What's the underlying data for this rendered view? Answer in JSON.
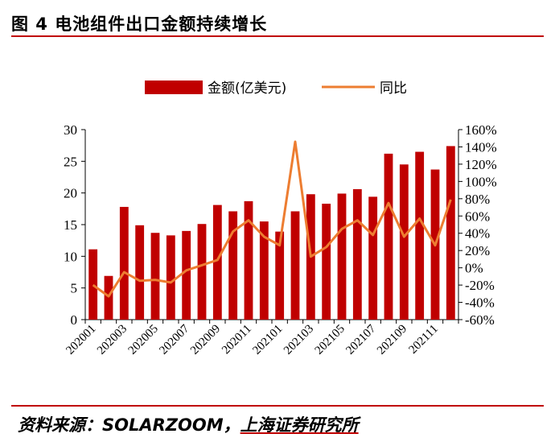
{
  "title": "图 4  电池组件出口金额持续增长",
  "source_label": "资料来源：SOLARZOOM，",
  "source_institution": "上海证券研究所",
  "colors": {
    "bar": "#c00000",
    "line": "#ed7d31",
    "rule": "#c00000"
  },
  "chart_data": {
    "type": "bar",
    "x": [
      "202001",
      "202002",
      "202003",
      "202004",
      "202005",
      "202006",
      "202007",
      "202008",
      "202009",
      "202010",
      "202011",
      "202012",
      "202101",
      "202102",
      "202103",
      "202104",
      "202105",
      "202106",
      "202107",
      "202108",
      "202109",
      "202110",
      "202111",
      "202112"
    ],
    "x_tick_labels": [
      "202001",
      "202003",
      "202005",
      "202007",
      "202009",
      "202011",
      "202101",
      "202103",
      "202105",
      "202107",
      "202109",
      "202111"
    ],
    "series": [
      {
        "name": "金额(亿美元)",
        "type": "bar",
        "axis": "left",
        "values": [
          11.1,
          6.9,
          17.8,
          14.9,
          13.7,
          13.3,
          14.0,
          15.1,
          18.1,
          17.1,
          18.7,
          15.5,
          13.9,
          17.1,
          19.8,
          18.3,
          19.9,
          20.6,
          19.4,
          26.2,
          24.5,
          26.5,
          23.7,
          27.4
        ]
      },
      {
        "name": "同比",
        "type": "line",
        "axis": "right",
        "values": [
          -20,
          -33,
          -5,
          -15,
          -14,
          -17,
          -3,
          3,
          9,
          42,
          55,
          36,
          26,
          146,
          13,
          24,
          45,
          55,
          38,
          75,
          36,
          57,
          26,
          79
        ]
      }
    ],
    "y_left": {
      "ticks": [
        "0",
        "5",
        "10",
        "15",
        "20",
        "25",
        "30"
      ],
      "min": 0,
      "max": 30
    },
    "y_right": {
      "ticks": [
        "-60%",
        "-40%",
        "-20%",
        "0%",
        "20%",
        "40%",
        "60%",
        "80%",
        "100%",
        "120%",
        "140%",
        "160%"
      ],
      "min": -60,
      "max": 160
    },
    "legend_position": "top-center",
    "grid": false
  }
}
